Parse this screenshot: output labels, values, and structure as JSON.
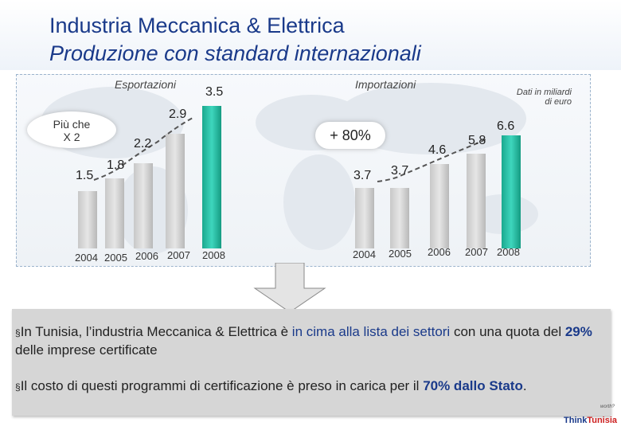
{
  "header": {
    "title_line1": "Industria Meccanica & Elettrica",
    "title_line2": "Produzione con standard internazionali"
  },
  "export_chart": {
    "label": "Esportazioni",
    "note": "Più che\nX 2",
    "years": [
      "2004",
      "2005",
      "2006",
      "2007",
      "2008"
    ],
    "values_text": [
      "1.5",
      "1.8",
      "2.2",
      "2.9",
      "3.5"
    ]
  },
  "import_chart": {
    "label": "Importazioni",
    "unit_note": "Dati in miliardi\ndi euro",
    "growth": "+ 80%",
    "years": [
      "2004",
      "2005",
      "2006",
      "2007",
      "2008"
    ],
    "values_text": [
      "3.7",
      "3.7",
      "4.6",
      "5.8",
      "6.6"
    ]
  },
  "chart_data": [
    {
      "type": "bar",
      "title": "Esportazioni",
      "categories": [
        "2004",
        "2005",
        "2006",
        "2007",
        "2008"
      ],
      "values": [
        1.5,
        1.8,
        2.2,
        2.9,
        3.5
      ],
      "highlight": "2008",
      "colors": {
        "bar": "#cccccc",
        "highlight": "#2cc2a8"
      }
    },
    {
      "type": "bar",
      "title": "Importazioni",
      "categories": [
        "2004",
        "2005",
        "2006",
        "2007",
        "2008"
      ],
      "values": [
        3.7,
        3.7,
        4.6,
        5.8,
        6.6
      ],
      "highlight": "2008",
      "colors": {
        "bar": "#cccccc",
        "highlight": "#2cc2a8"
      }
    }
  ],
  "bullets": {
    "b1": {
      "marker": "§",
      "t1": "In Tunisia, l’industria Meccanica & Elettrica è ",
      "h1": "in cima alla lista dei settori",
      "t2": " con una quota del ",
      "h2": "29%",
      "t3": " delle imprese certificate"
    },
    "b2": {
      "marker": "§",
      "t1": "Il costo di questi programmi di certificazione è preso in carica per il ",
      "h1": "70% dallo Stato",
      "t2": "."
    }
  },
  "logo": {
    "part1": "Think",
    "part2": "Tunisia",
    "tagline": "worth?"
  },
  "colors": {
    "title": "#1a3a8a",
    "accent": "#2cc2a8"
  }
}
